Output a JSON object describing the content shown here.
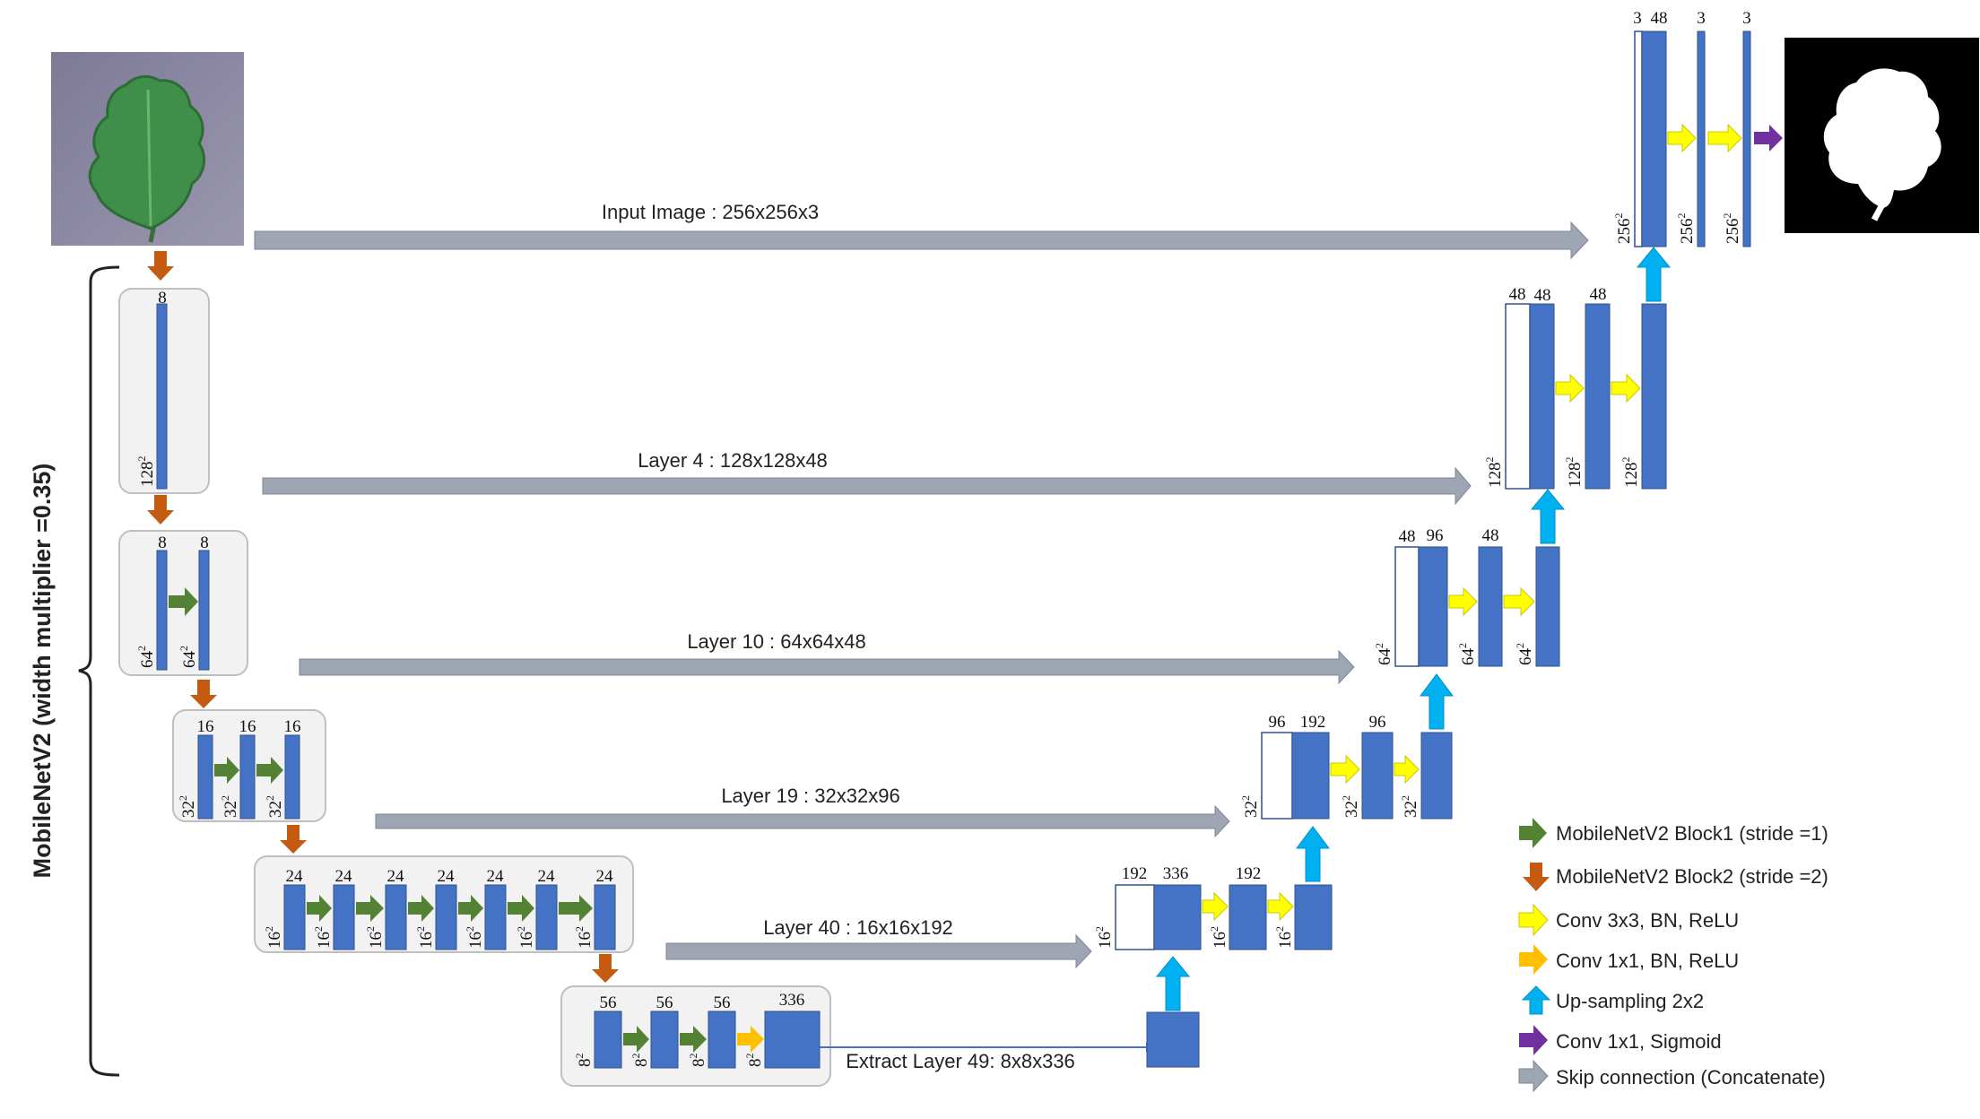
{
  "colors": {
    "block_fill": "#4472C4",
    "block_stroke": "#2F528F",
    "panel_fill": "#F2F2F2",
    "panel_stroke": "#BFBFBF",
    "skip_arrow": "#9EA6B4",
    "block1_arrow": "#548235",
    "block2_arrow": "#C55A11",
    "conv3_arrow": "#FFFF00",
    "conv1_arrow": "#FFC000",
    "upsample_arrow": "#00B0F0",
    "sigmoid_arrow": "#7030A0"
  },
  "backbone_label": "MobileNetV2 (width multiplier =0.35)",
  "skip_labels": {
    "input": "Input Image : 256x256x3",
    "layer4": "Layer 4 : 128x128x48",
    "layer10": "Layer 10 : 64x64x48",
    "layer19": "Layer 19 : 32x32x96",
    "layer40": "Layer 40 : 16x16x192",
    "layer49": "Extract Layer 49: 8x8x336"
  },
  "encoder": {
    "s1": {
      "channels": "8",
      "size": "128"
    },
    "s2": {
      "channels": [
        "8",
        "8"
      ],
      "size": "64"
    },
    "s3": {
      "channels": [
        "16",
        "16",
        "16"
      ],
      "size": "32"
    },
    "s4": {
      "channels": [
        "24",
        "24",
        "24",
        "24",
        "24",
        "24",
        "24"
      ],
      "size": "16"
    },
    "s5": {
      "channels": [
        "56",
        "56",
        "56",
        "336"
      ],
      "size": "8"
    }
  },
  "decoder": {
    "d1": {
      "channels": [
        "192",
        "336",
        "192"
      ],
      "size": "16"
    },
    "d2": {
      "channels": [
        "96",
        "192",
        "96"
      ],
      "size": "32"
    },
    "d3": {
      "channels": [
        "48",
        "96",
        "48"
      ],
      "size": "64"
    },
    "d4": {
      "channels": [
        "48",
        "48",
        "48"
      ],
      "size": "128"
    },
    "d5": {
      "channels": [
        "3",
        "48",
        "3",
        "3"
      ],
      "size": "256"
    }
  },
  "size_exp": "2",
  "legend": [
    {
      "icon": "block1-arrow-icon",
      "label": "MobileNetV2 Block1 (stride =1)"
    },
    {
      "icon": "block2-arrow-icon",
      "label": "MobileNetV2 Block2 (stride =2)"
    },
    {
      "icon": "conv3x3-arrow-icon",
      "label": "Conv 3x3, BN, ReLU"
    },
    {
      "icon": "conv1x1-arrow-icon",
      "label": "Conv 1x1, BN, ReLU"
    },
    {
      "icon": "upsample-arrow-icon",
      "label": "Up-sampling 2x2"
    },
    {
      "icon": "sigmoid-arrow-icon",
      "label": "Conv 1x1, Sigmoid"
    },
    {
      "icon": "skip-arrow-icon",
      "label": "Skip connection (Concatenate)"
    }
  ]
}
